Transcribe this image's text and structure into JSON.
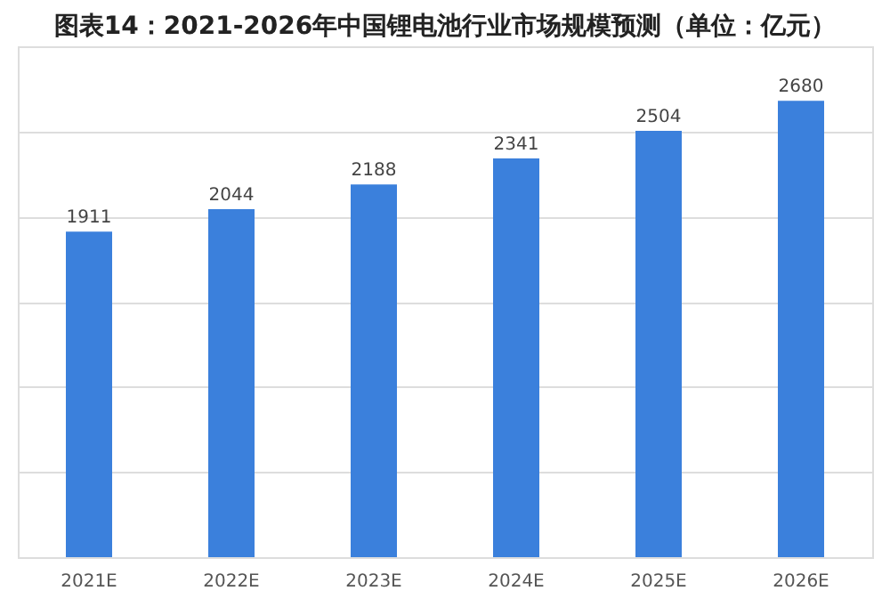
{
  "chart_data": {
    "type": "bar",
    "title": "图表14：2021-2026年中国锂电池行业市场规模预测（单位：亿元）",
    "categories": [
      "2021E",
      "2022E",
      "2023E",
      "2024E",
      "2025E",
      "2026E"
    ],
    "values": [
      1911,
      2044,
      2188,
      2341,
      2504,
      2680
    ],
    "color": "#3b80dc",
    "ylim": [
      0,
      3000
    ],
    "yticks": [
      {
        "value": 0,
        "label": null
      },
      {
        "value": 500,
        "label": null
      },
      {
        "value": 1000,
        "label": null
      },
      {
        "value": 1500,
        "label": null
      },
      {
        "value": 2000,
        "label": null
      },
      {
        "value": 2500,
        "label": null
      },
      {
        "value": 3000,
        "label": null
      }
    ],
    "grid": "y",
    "tick_labels": "x",
    "data_labels": true
  }
}
